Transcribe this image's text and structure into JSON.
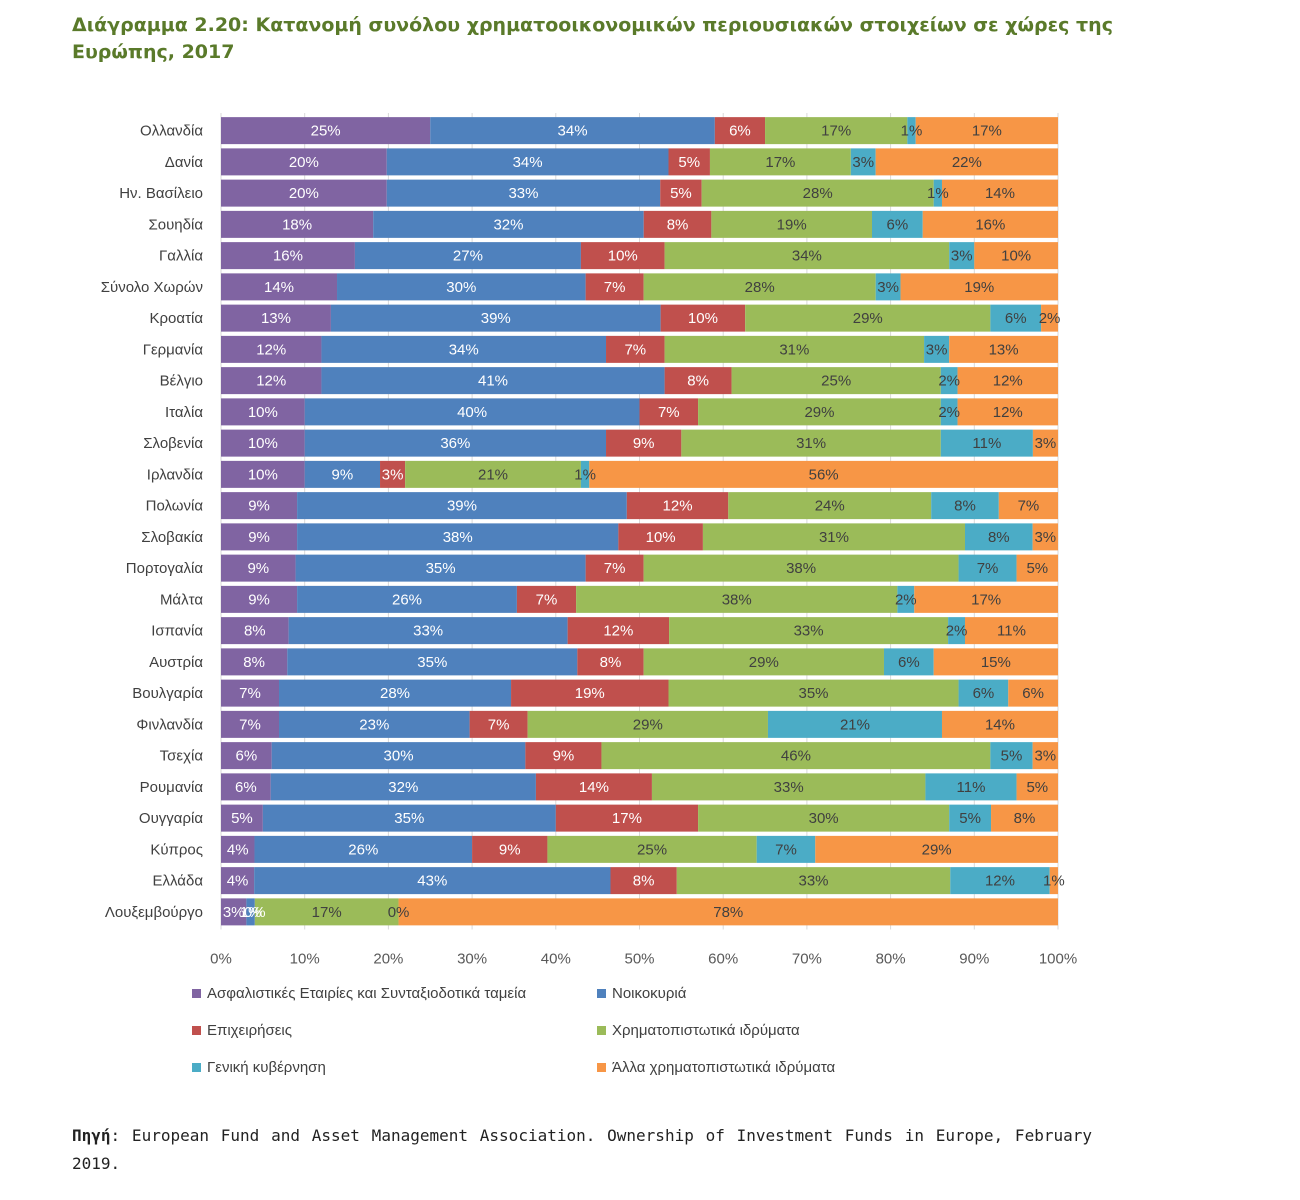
{
  "title": "Διάγραμμα 2.20: Κατανομή συνόλου χρηματοοικονομικών περιουσιακών στοιχείων σε χώρες της Ευρώπης, 2017",
  "source": {
    "label": "Πηγή",
    "text": ": European Fund and Asset Management Association. Ownership of Investment Funds in Europe, February 2019."
  },
  "chart_data": {
    "type": "bar",
    "orientation": "horizontal",
    "stacked": "100%",
    "xlim": [
      0,
      100
    ],
    "x_ticks": [
      "0%",
      "10%",
      "20%",
      "30%",
      "40%",
      "50%",
      "60%",
      "70%",
      "80%",
      "90%",
      "100%"
    ],
    "categories": [
      "Ολλανδία",
      "Δανία",
      "Ην. Βασίλειο",
      "Σουηδία",
      "Γαλλία",
      "Σύνολο Χωρών",
      "Κροατία",
      "Γερμανία",
      "Βέλγιο",
      "Ιταλία",
      "Σλοβενία",
      "Ιρλανδία",
      "Πολωνία",
      "Σλοβακία",
      "Πορτογαλία",
      "Μάλτα",
      "Ισπανία",
      "Αυστρία",
      "Βουλγαρία",
      "Φινλανδία",
      "Τσεχία",
      "Ρουμανία",
      "Ουγγαρία",
      "Κύπρος",
      "Ελλάδα",
      "Λουξεμβούργο"
    ],
    "series": [
      {
        "name": "Ασφαλιστικές Εταιρίες και Συνταξιοδοτικά ταμεία",
        "color": "#8064a2",
        "values": [
          25,
          20,
          20,
          18,
          16,
          14,
          13,
          12,
          12,
          10,
          10,
          10,
          9,
          9,
          9,
          9,
          8,
          8,
          7,
          7,
          6,
          6,
          5,
          4,
          4,
          3
        ]
      },
      {
        "name": "Νοικοκυριά",
        "color": "#4f81bd",
        "values": [
          34,
          34,
          33,
          32,
          27,
          30,
          39,
          34,
          41,
          40,
          36,
          9,
          39,
          38,
          35,
          26,
          33,
          35,
          28,
          23,
          30,
          32,
          35,
          26,
          43,
          1
        ]
      },
      {
        "name": "Επιχειρήσεις",
        "color": "#c0504d",
        "values": [
          6,
          5,
          5,
          8,
          10,
          7,
          10,
          7,
          8,
          7,
          9,
          3,
          12,
          10,
          7,
          7,
          12,
          8,
          19,
          7,
          9,
          14,
          17,
          9,
          8,
          0
        ]
      },
      {
        "name": "Χρηματοπιστωτικά ιδρύματα",
        "color": "#9bbb59",
        "values": [
          17,
          17,
          28,
          19,
          34,
          28,
          29,
          31,
          25,
          29,
          31,
          21,
          24,
          31,
          38,
          38,
          33,
          29,
          35,
          29,
          46,
          33,
          30,
          25,
          33,
          17
        ]
      },
      {
        "name": "Γενική κυβέρνηση",
        "color": "#4bacc6",
        "values": [
          1,
          3,
          1,
          6,
          3,
          3,
          6,
          3,
          2,
          2,
          11,
          1,
          8,
          8,
          7,
          2,
          2,
          6,
          6,
          21,
          5,
          11,
          5,
          7,
          12,
          0
        ]
      },
      {
        "name": "Άλλα χρηματοπιστωτικά ιδρύματα",
        "color": "#f79646",
        "values": [
          17,
          22,
          14,
          16,
          10,
          19,
          2,
          13,
          12,
          12,
          3,
          56,
          7,
          3,
          5,
          17,
          11,
          15,
          6,
          14,
          3,
          5,
          8,
          29,
          1,
          78
        ]
      }
    ]
  }
}
